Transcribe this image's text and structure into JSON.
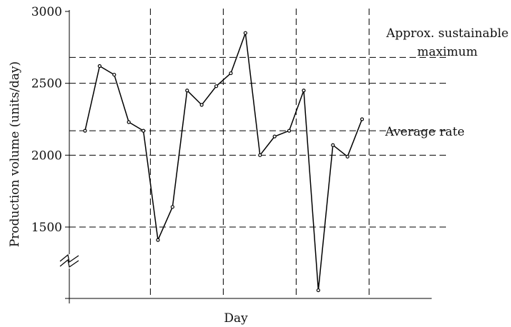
{
  "chart_data": {
    "type": "line",
    "xlabel": "Day",
    "ylabel": "Production volume (units/day)",
    "ylim": [
      1000,
      3000
    ],
    "y_ticks": [
      1500,
      2000,
      2500,
      3000
    ],
    "y_axis_break": true,
    "grid": "dashed",
    "x": [
      1,
      2,
      3,
      4,
      5,
      6,
      7,
      8,
      9,
      10,
      11,
      12,
      13,
      14,
      15,
      16,
      17,
      18,
      19,
      20
    ],
    "values": [
      2170,
      2620,
      2560,
      2230,
      2170,
      1410,
      1640,
      2450,
      2350,
      2480,
      2570,
      2850,
      2000,
      2130,
      2170,
      2450,
      1060,
      2070,
      1990,
      2250
    ],
    "reference_lines": [
      {
        "label": "Approx. sustainable maximum",
        "value": 2680
      },
      {
        "label": "Average rate",
        "value": 2170
      }
    ],
    "week_separators_after_day": [
      5,
      10,
      15,
      20
    ]
  }
}
